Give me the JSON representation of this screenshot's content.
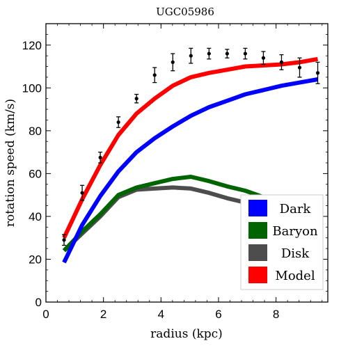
{
  "chart_data": {
    "type": "line",
    "title": "UGC05986",
    "xlabel": "radius (kpc)",
    "ylabel": "rotation speed (km/s)",
    "xlim": [
      0,
      9.8
    ],
    "ylim": [
      0,
      130
    ],
    "xticks": [
      0,
      2,
      4,
      6,
      8
    ],
    "yticks": [
      0,
      20,
      40,
      60,
      80,
      100,
      120
    ],
    "x": [
      0.63,
      1.26,
      1.89,
      2.52,
      3.15,
      3.78,
      4.41,
      5.04,
      5.67,
      6.3,
      6.93,
      7.56,
      8.19,
      8.82,
      9.45
    ],
    "series": [
      {
        "name": "Dark",
        "color": "#0000ff",
        "values": [
          18.5,
          36,
          49.5,
          61,
          70,
          76.5,
          82,
          87,
          91,
          94,
          97,
          99,
          101,
          102.5,
          104
        ]
      },
      {
        "name": "Baryon",
        "color": "#006400",
        "values": [
          24,
          33,
          41,
          50,
          53.5,
          55.5,
          57.5,
          58.5,
          56.5,
          54,
          52,
          49,
          47,
          45.5,
          44.5
        ]
      },
      {
        "name": "Disk",
        "color": "#4d4d4d",
        "values": [
          24,
          32,
          40,
          49,
          52.5,
          53,
          53.5,
          53,
          51,
          48.5,
          46.5,
          44,
          42,
          39.5,
          37
        ]
      },
      {
        "name": "Model",
        "color": "#ff0000",
        "values": [
          30,
          48,
          64,
          78,
          88,
          95,
          101,
          105,
          107,
          108.5,
          110,
          110.5,
          111,
          112,
          113.5
        ]
      }
    ],
    "observed": {
      "x": [
        0.63,
        1.26,
        1.89,
        2.52,
        3.15,
        3.78,
        4.41,
        5.04,
        5.67,
        6.3,
        6.93,
        7.56,
        8.19,
        8.82,
        9.45
      ],
      "y": [
        29,
        51,
        67.5,
        84,
        95,
        106,
        112,
        115,
        116,
        116,
        116,
        114,
        112,
        109.5,
        107
      ],
      "err": [
        2.5,
        3.5,
        2.5,
        2.5,
        2,
        3.5,
        4,
        3.5,
        2.5,
        2,
        2.5,
        3,
        3.5,
        4.5,
        5
      ]
    },
    "legend": {
      "position": "bottom-right",
      "entries": [
        "Dark",
        "Baryon",
        "Disk",
        "Model"
      ]
    },
    "grid": false
  }
}
